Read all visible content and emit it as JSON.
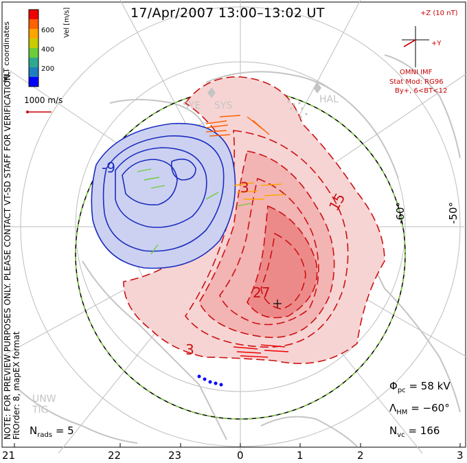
{
  "title": "17/Apr/2007 13:00–13:02 UT",
  "colorbar": {
    "title": "Vel [m/s]",
    "ticks": [
      "600",
      "400",
      "200"
    ],
    "colors": [
      "#0000ff",
      "#1e7fbf",
      "#2ea890",
      "#6ccc3a",
      "#c8cc00",
      "#ffa500",
      "#ff6000",
      "#ee0000"
    ]
  },
  "coords_label": "MLT coordinates",
  "reference_vector": "1000 m/s",
  "imf": {
    "scale_label": "+Z (10 nT)",
    "axis_y": "+Y",
    "source": "OMNI IMF",
    "model": "Stat Mod: RG96",
    "condition": "By+, 6<BT<12"
  },
  "radars": {
    "sye": "SYE",
    "sys": "SYS",
    "hal": "HAL",
    "unw": "UNW",
    "tig": "TIG"
  },
  "contour_labels": {
    "neg9": "-9",
    "pos3_top": "3",
    "pos15": "15",
    "pos27": "27",
    "pos3_bottom": "3"
  },
  "latitude_labels": [
    "-60°",
    "-50°"
  ],
  "notes": {
    "preview": "NOTE: FOR PREVIEW PURPOSES ONLY. PLEASE CONTACT VT-SD STAFF FOR VERIFICATION.",
    "fit": "FitOrder: 8, mapEX format"
  },
  "stats": {
    "n_rads_label": "N",
    "n_rads_sub": "rads",
    "n_rads_value": "= 5",
    "phi_label": "Φ",
    "phi_sub": "pc",
    "phi_value": "= 58 kV",
    "lambda_label": "Λ",
    "lambda_sub": "HM",
    "lambda_value": "= −60°",
    "nvc_label": "N",
    "nvc_sub": "vc",
    "nvc_value": "= 166"
  },
  "mlt_ticks": [
    "21",
    "22",
    "23",
    "0",
    "1",
    "2",
    "3"
  ],
  "colors": {
    "negative_contour": "#1a2cbf",
    "negative_fill": "#c8cdf0",
    "positive_contour": "#cc1010",
    "positive_fill": "#f7c9c9",
    "coast": "#c4c4c4",
    "grid": "#bdbdbd"
  }
}
